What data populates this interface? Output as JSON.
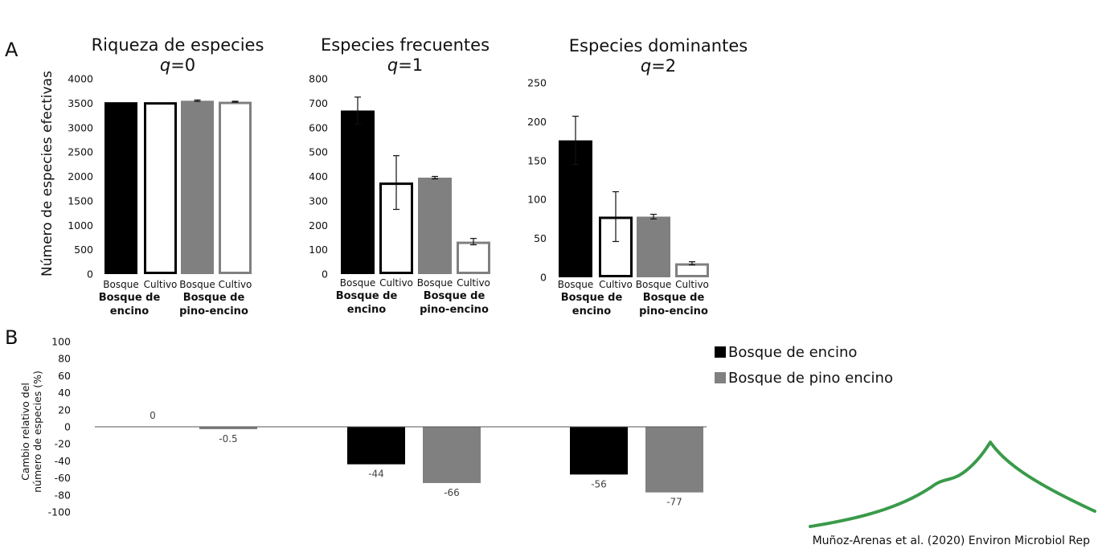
{
  "panel_a_letter": "A",
  "panel_b_letter": "B",
  "panel_a_ylabel": "Número de especies efectivas",
  "panel_b_ylabel_line1": "Cambio relativo del",
  "panel_b_ylabel_line2": "número de especies (%)",
  "citation": "Muñoz-Arenas et al. (2020) Environ Microbiol Rep",
  "colors": {
    "bosque_encino": "#000000",
    "pino_encino": "#808080",
    "cultivo_encino_outline": "#000000",
    "cultivo_pino_outline": "#808080",
    "logo_green": "#3a9a4a"
  },
  "chart_data": [
    {
      "type": "bar",
      "title_line1": "Riqueza de especies",
      "title_q": "q",
      "title_eq": "=0",
      "categories": [
        "Bosque",
        "Cultivo",
        "Bosque",
        "Cultivo"
      ],
      "groups": [
        "Bosque de encino",
        "Bosque de pino-encino"
      ],
      "group_line1": [
        "Bosque de",
        "Bosque de"
      ],
      "group_line2": [
        "encino",
        "pino-encino"
      ],
      "values": [
        3520,
        3520,
        3550,
        3530
      ],
      "errors": [
        0,
        0,
        15,
        10
      ],
      "ylim": [
        0,
        4000
      ],
      "yticks": [
        "0",
        "500",
        "1000",
        "1500",
        "2000",
        "2500",
        "3000",
        "3500",
        "4000"
      ]
    },
    {
      "type": "bar",
      "title_line1": "Especies frecuentes",
      "title_q": "q",
      "title_eq": "=1",
      "categories": [
        "Bosque",
        "Cultivo",
        "Bosque",
        "Cultivo"
      ],
      "groups": [
        "Bosque de encino",
        "Bosque de pino-encino"
      ],
      "group_line1": [
        "Bosque de",
        "Bosque de"
      ],
      "group_line2": [
        "encino",
        "pino-encino"
      ],
      "values": [
        670,
        375,
        395,
        133
      ],
      "errors": [
        55,
        110,
        5,
        13
      ],
      "ylim": [
        0,
        800
      ],
      "yticks": [
        "0",
        "100",
        "200",
        "300",
        "400",
        "500",
        "600",
        "700",
        "800"
      ]
    },
    {
      "type": "bar",
      "title_line1": "Especies dominantes",
      "title_q": "q",
      "title_eq": "=2",
      "categories": [
        "Bosque",
        "Cultivo",
        "Bosque",
        "Cultivo"
      ],
      "groups": [
        "Bosque de encino",
        "Bosque de pino-encino"
      ],
      "group_line1": [
        "Bosque de",
        "Bosque de"
      ],
      "group_line2": [
        "encino",
        "pino-encino"
      ],
      "values": [
        176,
        78,
        78,
        18
      ],
      "errors": [
        31,
        32,
        3,
        2
      ],
      "ylim": [
        0,
        250
      ],
      "yticks": [
        "0",
        "50",
        "100",
        "150",
        "200",
        "250"
      ]
    },
    {
      "type": "bar",
      "series": [
        {
          "name": "Bosque de encino",
          "values": [
            0,
            -44,
            -56
          ],
          "labels": [
            "0",
            "-44",
            "-56"
          ]
        },
        {
          "name": "Bosque de pino encino",
          "values": [
            -0.5,
            -66,
            -77
          ],
          "labels": [
            "-0.5",
            "-66",
            "-77"
          ]
        }
      ],
      "ylim": [
        -100,
        100
      ],
      "yticks": [
        "-100",
        "-80",
        "-60",
        "-40",
        "-20",
        "0",
        "20",
        "40",
        "60",
        "80",
        "100"
      ],
      "legend": "top-right"
    }
  ]
}
